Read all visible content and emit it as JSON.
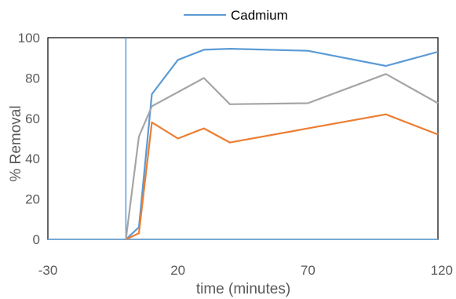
{
  "chart_data": {
    "type": "line",
    "legend": "top",
    "xlabel": "time (minutes)",
    "ylabel": "% Removal",
    "xlim": [
      -30,
      120
    ],
    "ylim": [
      0,
      100
    ],
    "x_ticks": [
      -30,
      20,
      70,
      120
    ],
    "y_ticks": [
      0,
      20,
      40,
      60,
      80,
      100
    ],
    "grid": false,
    "series": [
      {
        "name": "Cadmium",
        "color": "#5B9BD5",
        "points": [
          [
            0,
            0
          ],
          [
            5,
            6
          ],
          [
            10,
            72
          ],
          [
            20,
            89
          ],
          [
            30,
            94
          ],
          [
            40,
            94.5
          ],
          [
            70,
            93.5
          ],
          [
            100,
            86
          ],
          [
            120,
            93
          ]
        ]
      },
      {
        "color": "#ED7D31",
        "points": [
          [
            0,
            0
          ],
          [
            5,
            3
          ],
          [
            10,
            58
          ],
          [
            20,
            50
          ],
          [
            30,
            55
          ],
          [
            40,
            48
          ],
          [
            70,
            55
          ],
          [
            100,
            62
          ],
          [
            120,
            52
          ]
        ]
      },
      {
        "color": "#A5A5A5",
        "points": [
          [
            0,
            0
          ],
          [
            5,
            51
          ],
          [
            10,
            66
          ],
          [
            20,
            73
          ],
          [
            30,
            80
          ],
          [
            40,
            67
          ],
          [
            70,
            67.5
          ],
          [
            100,
            82
          ],
          [
            120,
            67.5
          ]
        ]
      }
    ],
    "reference_lines": [
      {
        "orientation": "vertical",
        "x": 0,
        "color": "#5B9BD5"
      },
      {
        "orientation": "horizontal",
        "y": 0,
        "color": "#5B9BD5"
      }
    ]
  }
}
